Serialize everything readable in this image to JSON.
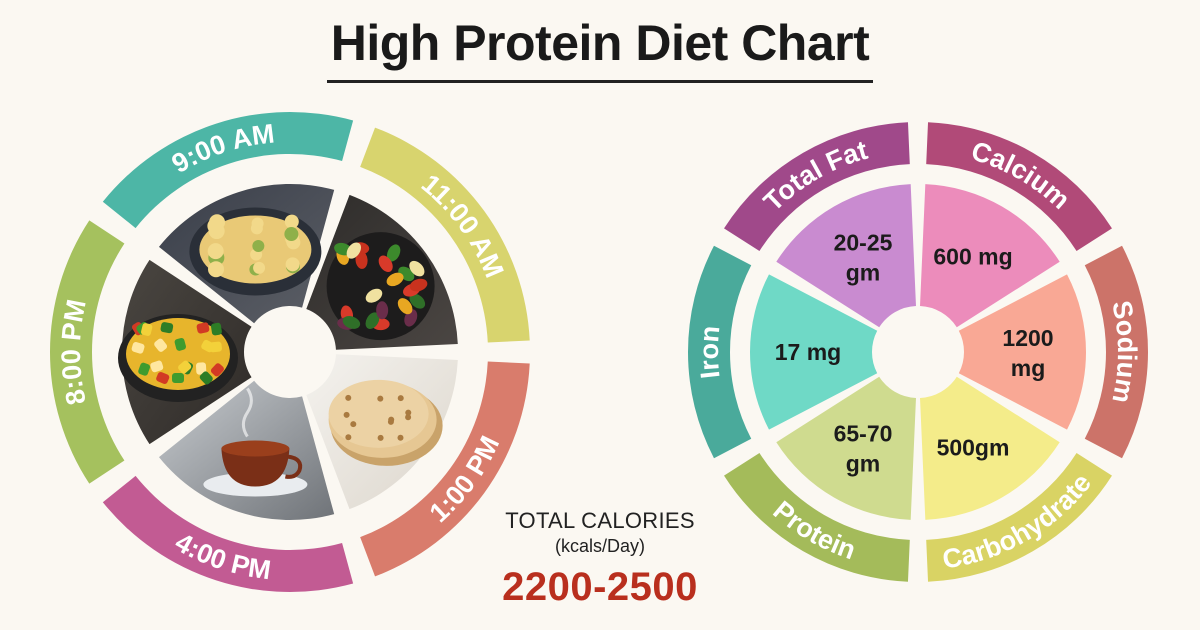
{
  "title": "High Protein Diet Chart",
  "meal_schedule": {
    "slots": [
      {
        "time": "9:00 AM",
        "color": "#4db6a6",
        "food": "scrambled-eggs"
      },
      {
        "time": "11:00 AM",
        "color": "#d8d46e",
        "food": "grilled-vegetables"
      },
      {
        "time": "1:00 PM",
        "color": "#d97c6c",
        "food": "chapati"
      },
      {
        "time": "4:00 PM",
        "color": "#c25b93",
        "food": "tea-cup"
      },
      {
        "time": "8:00 PM",
        "color": "#a5c15e",
        "food": "vegetable-curry"
      }
    ]
  },
  "nutrients": {
    "items": [
      {
        "name": "Total Fat",
        "value": "20-25 gm",
        "ring_color": "#a0498a",
        "wedge_color": "#c98bd0"
      },
      {
        "name": "Calcium",
        "value": "600 mg",
        "ring_color": "#b14a78",
        "wedge_color": "#ec8cbb"
      },
      {
        "name": "Sodium",
        "value": "1200 mg",
        "ring_color": "#cc7369",
        "wedge_color": "#f9a895"
      },
      {
        "name": "Carbohydrate",
        "value": "500gm",
        "ring_color": "#d9d364",
        "wedge_color": "#f4ec8a"
      },
      {
        "name": "Protein",
        "value": "65-70 gm",
        "ring_color": "#a4bb5a",
        "wedge_color": "#cfdb8f"
      },
      {
        "name": "Iron",
        "value": "17 mg",
        "ring_color": "#4aaa9b",
        "wedge_color": "#6fd9c6"
      }
    ]
  },
  "calories": {
    "label": "TOTAL CALORIES",
    "unit": "(kcals/Day)",
    "value": "2200-2500"
  }
}
